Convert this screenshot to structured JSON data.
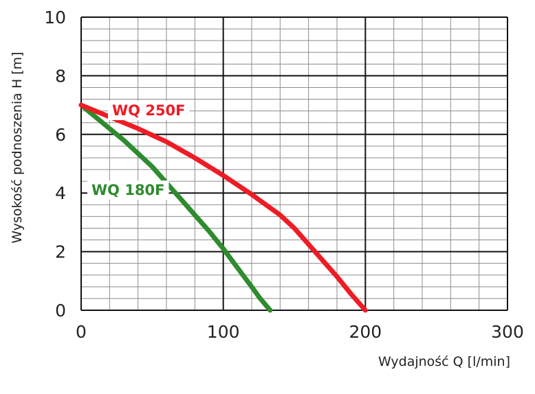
{
  "chart_data": {
    "type": "line",
    "xlabel": "Wydajność Q [l/min]",
    "ylabel": "Wysokość podnoszenia H [m]",
    "xlim": [
      0,
      300
    ],
    "ylim": [
      0,
      10
    ],
    "x_ticks": [
      0,
      100,
      200,
      300
    ],
    "y_ticks": [
      0,
      2,
      4,
      6,
      8,
      10
    ],
    "x_tick_labels": [
      "0",
      "100",
      "200",
      "300"
    ],
    "y_tick_labels": [
      "0",
      "2",
      "4",
      "6",
      "8",
      "10"
    ],
    "grid": true,
    "series": [
      {
        "name": "WQ 250F",
        "color": "#ee1c25",
        "x": [
          0,
          20,
          40,
          60,
          80,
          100,
          120,
          140,
          150,
          160,
          170,
          180,
          190,
          200
        ],
        "y": [
          7.0,
          6.6,
          6.2,
          5.75,
          5.2,
          4.6,
          3.95,
          3.25,
          2.8,
          2.25,
          1.7,
          1.15,
          0.55,
          0.0
        ]
      },
      {
        "name": "WQ 180F",
        "color": "#2e8b2e",
        "x": [
          0,
          10,
          20,
          30,
          40,
          50,
          60,
          70,
          80,
          90,
          100,
          110,
          120,
          126,
          133
        ],
        "y": [
          7.0,
          6.6,
          6.2,
          5.8,
          5.35,
          4.9,
          4.35,
          3.8,
          3.25,
          2.7,
          2.1,
          1.45,
          0.8,
          0.4,
          0.0
        ]
      }
    ]
  }
}
